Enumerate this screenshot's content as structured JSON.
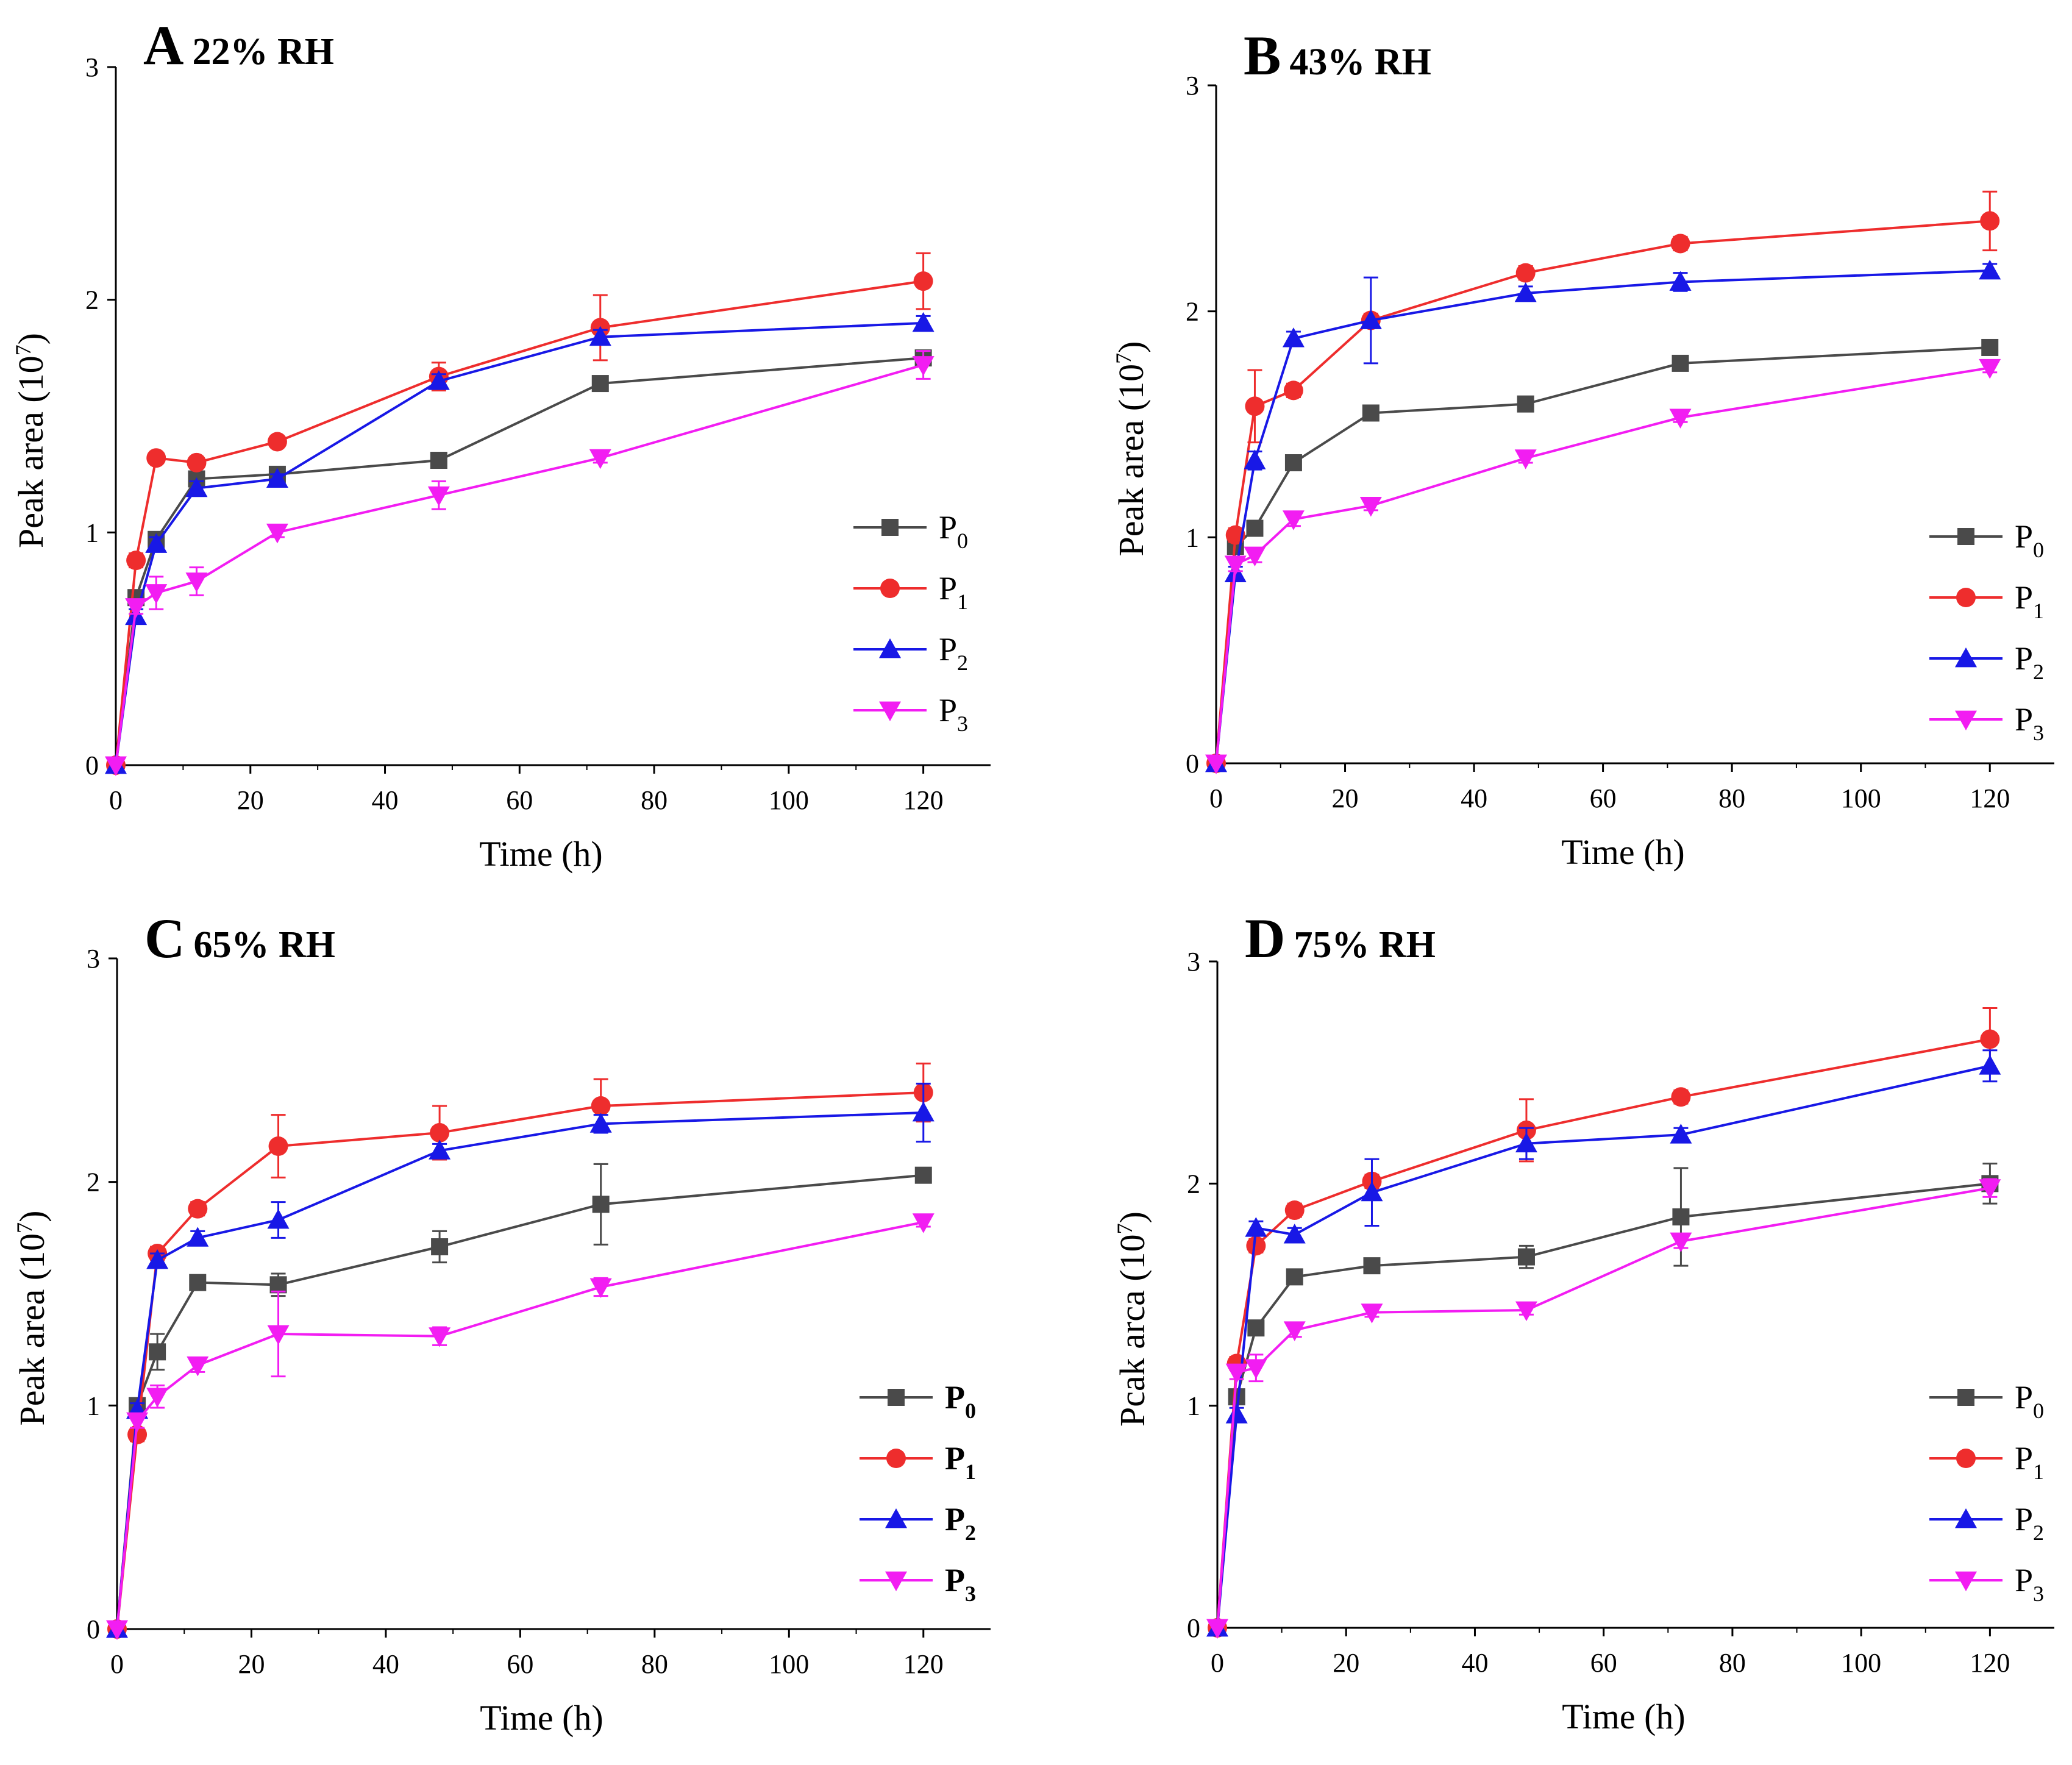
{
  "chart_data": [
    {
      "type": "line",
      "panel_letter": "A",
      "title": "22% RH",
      "xlabel": "Time (h)",
      "ylabel_main": "Peak area (10",
      "ylabel_exp": "7",
      "ylabel_close": ")",
      "xlim": [
        0,
        130
      ],
      "ylim": [
        0,
        3
      ],
      "xticks": [
        "0",
        "20",
        "40",
        "60",
        "80",
        "100",
        "120"
      ],
      "yticks": [
        "0",
        "1",
        "2",
        "3"
      ],
      "x": [
        0,
        3,
        6,
        12,
        24,
        48,
        72,
        120
      ],
      "legend_bold": false,
      "series": [
        {
          "name": "P",
          "sub": "0",
          "values": [
            0,
            0.72,
            0.97,
            1.23,
            1.25,
            1.31,
            1.64,
            1.75
          ],
          "errors": [
            0,
            0.03,
            0.03,
            0.02,
            0.02,
            0.02,
            0.02,
            0.02
          ]
        },
        {
          "name": "P",
          "sub": "1",
          "values": [
            0,
            0.88,
            1.32,
            1.3,
            1.39,
            1.67,
            1.88,
            2.08
          ],
          "errors": [
            0,
            0.03,
            0.02,
            0.02,
            0.02,
            0.06,
            0.14,
            0.12
          ]
        },
        {
          "name": "P",
          "sub": "2",
          "values": [
            0,
            0.64,
            0.95,
            1.19,
            1.23,
            1.65,
            1.84,
            1.9
          ],
          "errors": [
            0,
            0.03,
            0.03,
            0.03,
            0.02,
            0.03,
            0.03,
            0.03
          ]
        },
        {
          "name": "P",
          "sub": "3",
          "values": [
            0,
            0.68,
            0.74,
            0.79,
            1.0,
            1.16,
            1.32,
            1.72
          ],
          "errors": [
            0,
            0.03,
            0.07,
            0.06,
            0.02,
            0.06,
            0.02,
            0.06
          ]
        }
      ]
    },
    {
      "type": "line",
      "panel_letter": "B",
      "title": "43% RH",
      "xlabel": "Time (h)",
      "ylabel_main": "Peak area (10",
      "ylabel_exp": "7",
      "ylabel_close": ")",
      "xlim": [
        0,
        130
      ],
      "ylim": [
        0,
        3
      ],
      "xticks": [
        "0",
        "20",
        "40",
        "60",
        "80",
        "100",
        "120"
      ],
      "yticks": [
        "0",
        "1",
        "2",
        "3"
      ],
      "x": [
        0,
        3,
        6,
        12,
        24,
        48,
        72,
        120
      ],
      "legend_bold": false,
      "series": [
        {
          "name": "P",
          "sub": "0",
          "values": [
            0,
            0.96,
            1.04,
            1.33,
            1.55,
            1.59,
            1.77,
            1.84
          ],
          "errors": [
            0,
            0.03,
            0.03,
            0.02,
            0.02,
            0.02,
            0.02,
            0.02
          ]
        },
        {
          "name": "P",
          "sub": "1",
          "values": [
            0,
            1.01,
            1.58,
            1.65,
            1.96,
            2.17,
            2.3,
            2.4
          ],
          "errors": [
            0,
            0.03,
            0.16,
            0.03,
            0.03,
            0.03,
            0.03,
            0.13
          ]
        },
        {
          "name": "P",
          "sub": "2",
          "values": [
            0,
            0.84,
            1.34,
            1.88,
            1.96,
            2.08,
            2.13,
            2.18
          ],
          "errors": [
            0,
            0.03,
            0.04,
            0.03,
            0.19,
            0.03,
            0.04,
            0.03
          ]
        },
        {
          "name": "P",
          "sub": "3",
          "values": [
            0,
            0.88,
            0.92,
            1.08,
            1.14,
            1.35,
            1.53,
            1.75
          ],
          "errors": [
            0,
            0.03,
            0.03,
            0.03,
            0.02,
            0.02,
            0.02,
            0.02
          ]
        }
      ]
    },
    {
      "type": "line",
      "panel_letter": "C",
      "title": "65% RH",
      "xlabel": "Time (h)",
      "ylabel_main": "Peak area (10",
      "ylabel_exp": "7",
      "ylabel_close": ")",
      "xlim": [
        0,
        130
      ],
      "ylim": [
        0,
        3
      ],
      "xticks": [
        "0",
        "20",
        "40",
        "60",
        "80",
        "100",
        "120"
      ],
      "yticks": [
        "0",
        "1",
        "2",
        "3"
      ],
      "x": [
        0,
        3,
        6,
        12,
        24,
        48,
        72,
        120
      ],
      "legend_bold": true,
      "series": [
        {
          "name": "P",
          "sub": "0",
          "values": [
            0,
            1.0,
            1.24,
            1.55,
            1.54,
            1.71,
            1.9,
            2.03
          ],
          "errors": [
            0,
            0.03,
            0.08,
            0.03,
            0.05,
            0.07,
            0.18,
            0.02
          ]
        },
        {
          "name": "P",
          "sub": "1",
          "values": [
            0,
            0.87,
            1.68,
            1.88,
            2.16,
            2.22,
            2.34,
            2.4
          ],
          "errors": [
            0,
            0.03,
            0.03,
            0.03,
            0.14,
            0.12,
            0.12,
            0.13
          ]
        },
        {
          "name": "P",
          "sub": "2",
          "values": [
            0,
            0.98,
            1.65,
            1.75,
            1.83,
            2.14,
            2.26,
            2.31
          ],
          "errors": [
            0,
            0.03,
            0.03,
            0.03,
            0.08,
            0.03,
            0.04,
            0.13
          ]
        },
        {
          "name": "P",
          "sub": "3",
          "values": [
            0,
            0.93,
            1.04,
            1.18,
            1.32,
            1.31,
            1.53,
            1.82
          ],
          "errors": [
            0,
            0.03,
            0.05,
            0.03,
            0.19,
            0.04,
            0.04,
            0.02
          ]
        }
      ]
    },
    {
      "type": "line",
      "panel_letter": "D",
      "title": "75% RH",
      "xlabel": "Time (h)",
      "ylabel_main": "Pcak arca (10",
      "ylabel_exp": "7",
      "ylabel_close": ")",
      "xlim": [
        0,
        130
      ],
      "ylim": [
        0,
        3
      ],
      "xticks": [
        "0",
        "20",
        "40",
        "60",
        "80",
        "100",
        "120"
      ],
      "yticks": [
        "0",
        "1",
        "2",
        "3"
      ],
      "x": [
        0,
        3,
        6,
        12,
        24,
        48,
        72,
        120
      ],
      "legend_bold": false,
      "series": [
        {
          "name": "P",
          "sub": "0",
          "values": [
            0,
            1.04,
            1.35,
            1.58,
            1.63,
            1.67,
            1.85,
            2.0
          ],
          "errors": [
            0,
            0.03,
            0.03,
            0.03,
            0.03,
            0.05,
            0.22,
            0.09
          ]
        },
        {
          "name": "P",
          "sub": "1",
          "values": [
            0,
            1.19,
            1.72,
            1.88,
            2.01,
            2.24,
            2.39,
            2.65
          ],
          "errors": [
            0,
            0.03,
            0.03,
            0.03,
            0.03,
            0.14,
            0.03,
            0.14
          ]
        },
        {
          "name": "P",
          "sub": "2",
          "values": [
            0,
            0.96,
            1.8,
            1.77,
            1.96,
            2.18,
            2.22,
            2.53
          ],
          "errors": [
            0,
            0.03,
            0.03,
            0.03,
            0.15,
            0.07,
            0.03,
            0.07
          ]
        },
        {
          "name": "P",
          "sub": "3",
          "values": [
            0,
            1.15,
            1.17,
            1.34,
            1.42,
            1.43,
            1.74,
            1.98
          ],
          "errors": [
            0,
            0.03,
            0.06,
            0.03,
            0.02,
            0.02,
            0.03,
            0.04
          ]
        }
      ]
    }
  ],
  "colors": {
    "P0": "#4a4a4a",
    "P1": "#ee2d2d",
    "P2": "#1818e6",
    "P3": "#f21df2",
    "axis": "#000000"
  },
  "markers": [
    "square",
    "circle",
    "triangle-up",
    "triangle-down"
  ]
}
